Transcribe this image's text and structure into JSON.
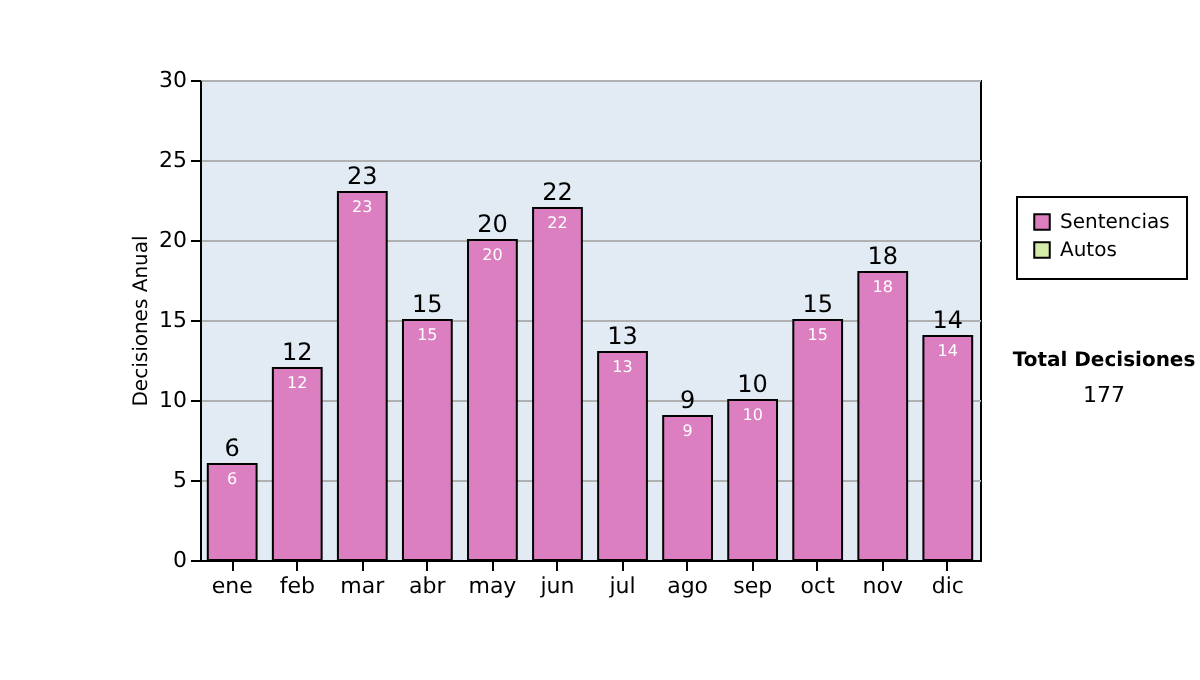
{
  "chart_data": {
    "type": "bar",
    "ylabel": "Decisiones Anual",
    "categories": [
      "ene",
      "feb",
      "mar",
      "abr",
      "may",
      "jun",
      "jul",
      "ago",
      "sep",
      "oct",
      "nov",
      "dic"
    ],
    "series": [
      {
        "name": "Sentencias",
        "color": "#dc7fc0",
        "values": [
          6,
          12,
          23,
          15,
          20,
          22,
          13,
          9,
          10,
          15,
          18,
          14
        ]
      },
      {
        "name": "Autos",
        "color": "#d4eaa8",
        "values": [
          null,
          null,
          null,
          null,
          null,
          null,
          null,
          null,
          null,
          null,
          null,
          null
        ]
      }
    ],
    "stacked": true,
    "ylim": [
      0,
      30
    ],
    "yticks": [
      0,
      5,
      10,
      15,
      20,
      25,
      30
    ],
    "grid": "y",
    "legend": "right",
    "data_labels": true,
    "totals": [
      "6",
      "12",
      "23",
      "15",
      "20",
      "22",
      "13",
      "9",
      "10",
      "15",
      "18",
      "14"
    ],
    "annotations": [
      "Total Decisiones",
      "177"
    ]
  }
}
